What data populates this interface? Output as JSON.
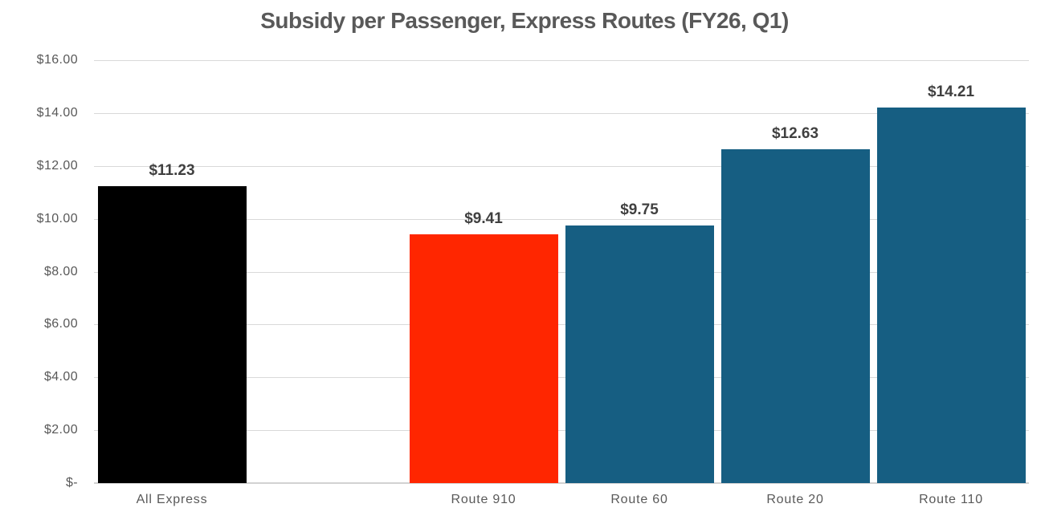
{
  "chart_data": {
    "type": "bar",
    "title": "Subsidy per Passenger, Express Routes (FY26, Q1)",
    "xlabel": "",
    "ylabel": "",
    "ylim": [
      0,
      16
    ],
    "ytick_step": 2,
    "ytick_labels_top_to_bottom": [
      "$16.00",
      "$14.00",
      "$12.00",
      "$10.00",
      "$8.00",
      "$6.00",
      "$4.00",
      "$2.00",
      "$-"
    ],
    "grid": true,
    "legend": false,
    "categories": [
      "All Express",
      "",
      "Route 910",
      "Route 60",
      "Route 20",
      "Route 110"
    ],
    "series": [
      {
        "name": "Subsidy per Passenger",
        "values": [
          11.23,
          null,
          9.41,
          9.75,
          12.63,
          14.21
        ],
        "data_labels": [
          "$11.23",
          null,
          "$9.41",
          "$9.75",
          "$12.63",
          "$14.21"
        ],
        "bar_colors": [
          "#000000",
          null,
          "#FF2600",
          "#165E82",
          "#165E82",
          "#165E82"
        ]
      }
    ],
    "notes": "blank category slot between All Express and Route 910"
  },
  "colors": {
    "default_bar": "#165E82",
    "highlight_bar": "#FF2600",
    "benchmark_bar": "#000000",
    "title_text": "#595959",
    "axis_text": "#595959",
    "data_label_text": "#404040",
    "gridline": "#D9D9D9",
    "axis_line": "#D2D2D2",
    "background": "#FFFFFF"
  }
}
